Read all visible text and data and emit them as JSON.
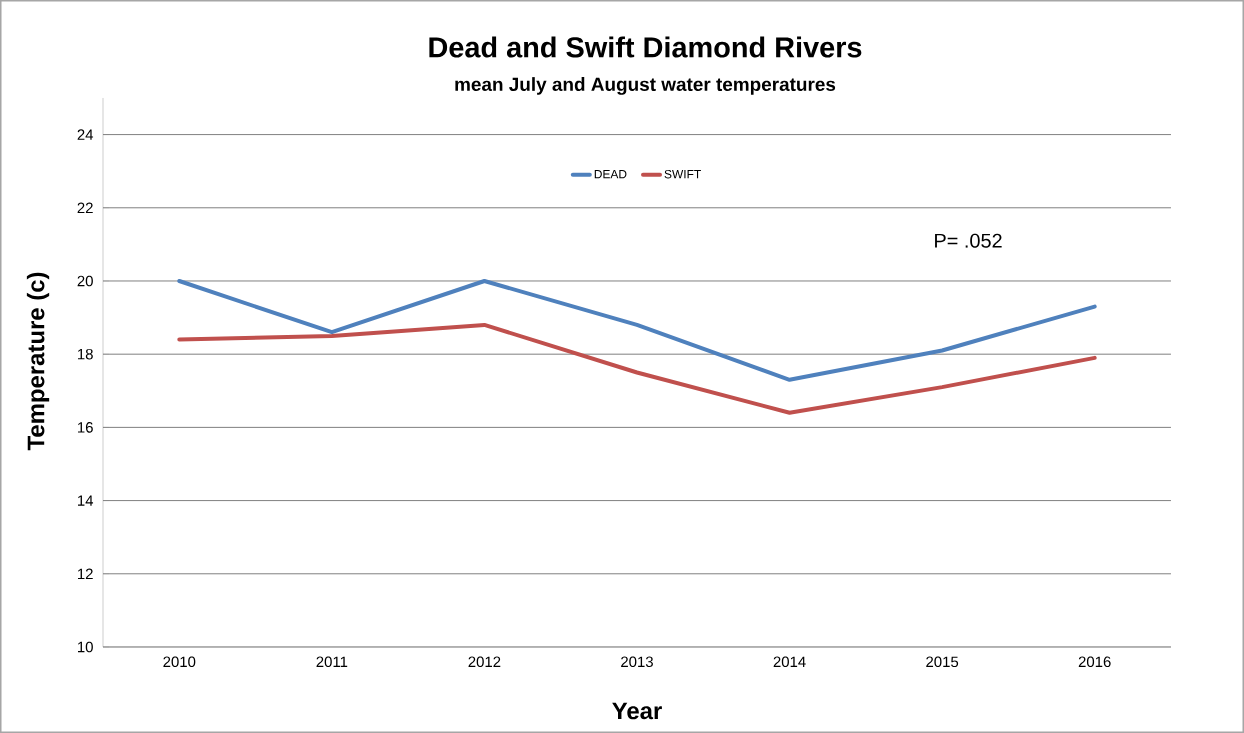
{
  "chart_data": {
    "type": "line",
    "title": "Dead and Swift Diamond Rivers",
    "subtitle": "mean July and August water temperatures",
    "xlabel": "Year",
    "ylabel": "Temperature (c)",
    "categories": [
      "2010",
      "2011",
      "2012",
      "2013",
      "2014",
      "2015",
      "2016"
    ],
    "series": [
      {
        "name": "DEAD",
        "color": "#4f81bd",
        "values": [
          20.0,
          18.6,
          20.0,
          18.8,
          17.3,
          18.1,
          19.3
        ]
      },
      {
        "name": "SWIFT",
        "color": "#c0504d",
        "values": [
          18.4,
          18.5,
          18.8,
          17.5,
          16.4,
          17.1,
          17.9
        ]
      }
    ],
    "ylim": [
      10,
      25
    ],
    "yticks": [
      10,
      12,
      14,
      16,
      18,
      20,
      22,
      24
    ],
    "grid": "y",
    "legend": "top",
    "marker": "none",
    "line_style": "solid",
    "annotations": [
      "P= .052"
    ]
  }
}
